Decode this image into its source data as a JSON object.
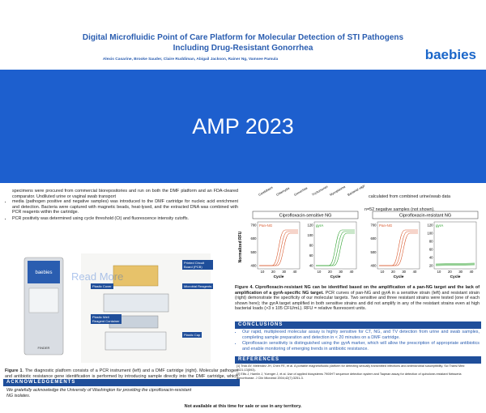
{
  "header": {
    "title_line1": "Digital Microfluidic Point of Care Platform for Molecular Detection of STI Pathogens",
    "title_line2": "Including Drug-Resistant Gonorrhea",
    "authors": "Alexis Casarine, Brooke Sauder, Claire Ruddiman, Abigail Jackson, Rainer Ng, Vamsee Pamula",
    "logo": "baebies"
  },
  "banner": {
    "text": "AMP 2023"
  },
  "overlay": {
    "text": "Read More"
  },
  "methods": {
    "intro": "specimens were procured from commercial biorepositories and run on both the DMF platform and an FDA-cleared comparator. Undiluted urine or vaginal swab transport",
    "bullets": [
      "media (pathogen positive and negative samples) was introduced to the DMF cartridge for nucleic acid enrichment and detection. Bacteria were captured with magnetic beads, heat-lysed, and the extracted DNA was combined with PCR reagents within the cartridge.",
      "PCR positivity was determined using cycle threshold (Ct) and fluorescence intensity cutoffs."
    ]
  },
  "figure1": {
    "device_logo": "baebies",
    "device_model": "FINDER",
    "labels": [
      "Printed Circuit Board (PCB)",
      "Plastic Cover",
      "Microbial Reagents",
      "Plastic Well Reagent Container",
      "Plastic Cap"
    ],
    "caption_title": "Figure 1",
    "caption": ". The diagnostic platform consists of a PCR instrument (left) and a DMF cartridge (right). Molecular pathogen and antibiotic resistance gene identification is performed by introducing sample directly into the DMF cartridge, which contains all reagents necessary for"
  },
  "acknowledgements": {
    "heading": "ACKNOWLEDGEMENTS",
    "text": "We gratefully acknowledge the University of Washington for providing the ciprofloxacin-resistant NG isolates."
  },
  "results": {
    "column_labels": [
      "Candidiasis",
      "Chlamydia",
      "Gonorrhea",
      "Trichomonas",
      "Mycoplasma",
      "Bacterial vaginosis"
    ],
    "notes": [
      "calculated from combined urine/swab data",
      "n=52 negative samples (not shown)."
    ]
  },
  "figure4": {
    "ylabel": "Normalized RFU",
    "panels": [
      {
        "title": "Ciprofloxacin-sensitive NG",
        "plots": [
          {
            "label": "Pan-NG",
            "yticks": [
              "700",
              "600",
              "500",
              "400"
            ],
            "xticks": [
              "10",
              "20",
              "30",
              "40"
            ],
            "xlabel": "Cycle"
          },
          {
            "label": "gyrA",
            "yticks": [
              "120",
              "100",
              "80",
              "60",
              "40"
            ],
            "xticks": [
              "10",
              "20",
              "30",
              "40"
            ],
            "xlabel": "Cycle"
          }
        ]
      },
      {
        "title": "Ciprofloxacin-resistant NG",
        "plots": [
          {
            "label": "Pan-NG",
            "yticks": [
              "700",
              "600",
              "500",
              "400"
            ],
            "xticks": [
              "10",
              "20",
              "30",
              "40"
            ],
            "xlabel": "Cycle"
          },
          {
            "label": "gyrA",
            "yticks": [
              "120",
              "100",
              "80",
              "60",
              "40",
              "20"
            ],
            "xticks": [
              "10",
              "20",
              "30",
              "40"
            ],
            "xlabel": "Cycle"
          }
        ]
      }
    ],
    "caption_title": "Figure 4. Ciprofloxacin-resistant NG can be identified based on the amplification of a pan-NG target and the lack of amplification of a gyrA-specific NG target.",
    "caption": " PCR curves of pan-NG and gyrA in a sensitive strain (left) and resistant strain (right) demonstrate the specificity of our molecular targets. Two sensitive and three resistant strains were tested (one of each shown here); the gyrA target amplified in both sensitive strains and did not amplify in any of the resistant strains even at high bacterial loads (>3 x 105 CFU/mL). RFU = relative fluorescent units."
  },
  "conclusions": {
    "heading": "CONCLUSIONS",
    "bullets": [
      "Our rapid, multiplexed molecular assay is highly sensitive for CT, NG, and TV detection from urine and swab samples, completing sample preparation and detection in < 20 minutes on a DMF cartridge.",
      "Ciprofloxacin sensitivity is distinguished using the gyrA marker, which will allow the prescription of appropriate antibiotics and enable monitoring of emerging trends in antibiotic resistance."
    ]
  },
  "references": {
    "heading": "REFERENCES",
    "items": [
      "[1] Trick AY, Melendez JH, Chen FE, et al. A portable magnetofluidic platform for detecting sexually transmitted infections and antimicrobial susceptibility. Sci Transl Med 2021;13(593).",
      "[2] Ellis J, Hamlin J, Yuenger J, et al. Use of applied biosystems 7900HT sequence detection system and Taqman assay for detection of quinolone-resistant Neisseria gonorrhoeae. J Clin Microbiol 2004;42(7):3251-3."
    ]
  },
  "footer": {
    "text": "Not available at this time for sale or use in any territory."
  }
}
